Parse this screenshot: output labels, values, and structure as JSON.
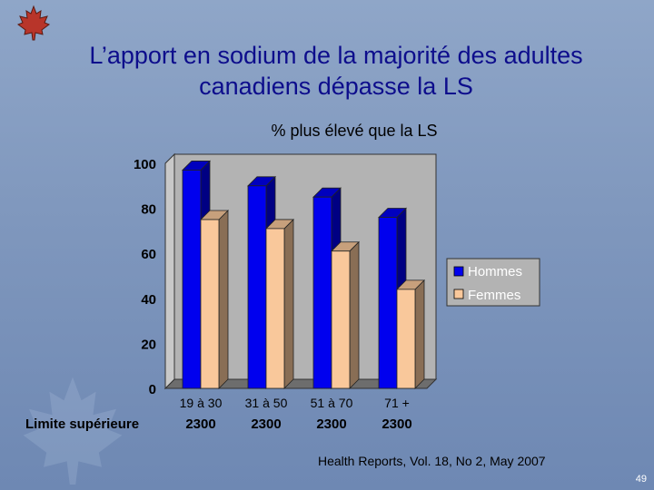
{
  "slide": {
    "title": "L’apport en sodium de la majorité des adultes canadiens dépasse la LS",
    "source": "Health Reports, Vol. 18, No 2,  May 2007",
    "page_number": "49",
    "limit_label": "Limite supérieure"
  },
  "colors": {
    "background": "#7f97bd",
    "title": "#0d0d8c",
    "hommes": "#0000ee",
    "femmes": "#f9c89b"
  },
  "icons": [
    "maple-leaf-logo",
    "maple-leaf-watermark"
  ],
  "chart_data": {
    "type": "bar",
    "title": "% plus élevé que la LS",
    "categories": [
      "19 à 30",
      "31 à 50",
      "51 à 70",
      "71 +"
    ],
    "upper_limit_values": [
      "2300",
      "2300",
      "2300",
      "2300"
    ],
    "series": [
      {
        "name": "Hommes",
        "values": [
          97,
          90,
          85,
          76
        ]
      },
      {
        "name": "Femmes",
        "values": [
          75,
          71,
          61,
          44
        ]
      }
    ],
    "yticks": [
      0,
      20,
      40,
      60,
      80,
      100
    ],
    "ylim": [
      0,
      100
    ],
    "xlabel": "",
    "ylabel": "",
    "legend_position": "right",
    "grid": false
  }
}
